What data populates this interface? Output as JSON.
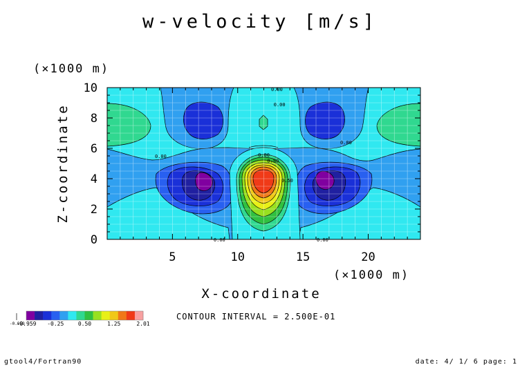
{
  "chart_data": {
    "type": "contour",
    "title": "w-velocity [m/s]",
    "xlabel": "X-coordinate",
    "ylabel": "Z-coordinate",
    "x_unit": "(×1000 m)",
    "y_unit": "(×1000 m)",
    "xlim": [
      0,
      24
    ],
    "ylim": [
      0,
      10
    ],
    "x_ticks": [
      5,
      10,
      15,
      20
    ],
    "x_tick_labels": [
      "5",
      "10",
      "15",
      "20"
    ],
    "y_ticks": [
      0,
      2,
      4,
      6,
      8,
      10
    ],
    "y_tick_labels": [
      "0",
      "2",
      "4",
      "6",
      "8",
      "10"
    ],
    "grid": true,
    "contour_interval_text": "CONTOUR INTERVAL = 2.500E-01",
    "contour_labels": [
      {
        "text": "0.00",
        "x": 13.0,
        "z": 9.9
      },
      {
        "text": "0.00",
        "x": 13.2,
        "z": 8.9
      },
      {
        "text": "0.00",
        "x": 4.1,
        "z": 5.5
      },
      {
        "text": "0.00",
        "x": 18.3,
        "z": 6.4
      },
      {
        "text": "0.00",
        "x": 12.0,
        "z": 5.6
      },
      {
        "text": "0.50",
        "x": 12.7,
        "z": 5.2
      },
      {
        "text": "0.50",
        "x": 13.8,
        "z": 3.9
      },
      {
        "text": "0.00",
        "x": 8.6,
        "z": 0.0
      },
      {
        "text": "0.00",
        "x": 16.5,
        "z": 0.0
      }
    ],
    "field_description_values": [
      {
        "feature": "updraft maximum",
        "x": 12.5,
        "z": 4.0,
        "w": 2.0
      },
      {
        "feature": "downdraft minimum left",
        "x": 8.2,
        "z": 3.9,
        "w": -0.95
      },
      {
        "feature": "downdraft minimum right",
        "x": 16.8,
        "z": 3.9,
        "w": -0.95
      },
      {
        "feature": "upper downdraft left",
        "x": 8.0,
        "z": 7.8,
        "w": -0.6
      },
      {
        "feature": "upper downdraft right",
        "x": 17.0,
        "z": 7.8,
        "w": -0.6
      },
      {
        "feature": "upper updraft center",
        "x": 12.5,
        "z": 7.9,
        "w": 0.6
      },
      {
        "feature": "upper updraft left edge",
        "x": 1.0,
        "z": 7.6,
        "w": 0.4
      },
      {
        "feature": "upper updraft right edge",
        "x": 23.0,
        "z": 7.6,
        "w": 0.4
      }
    ],
    "legend": {
      "type": "colorbar",
      "tick_labels": [
        "-0.959",
        "-0.25",
        "0.50",
        "1.25",
        "2.01"
      ],
      "extra_label": "-0.959",
      "colors": [
        "#8000a0",
        "#2020a0",
        "#1a30d8",
        "#2860f0",
        "#30a0f0",
        "#30e8f0",
        "#30d890",
        "#30c040",
        "#98e020",
        "#e8f018",
        "#f0c818",
        "#f07818",
        "#f03a18",
        "#f8a0a0"
      ]
    }
  },
  "footer": {
    "left": "gtool4/Fortran90",
    "right": "date: 4/ 1/ 6 page: 1"
  }
}
